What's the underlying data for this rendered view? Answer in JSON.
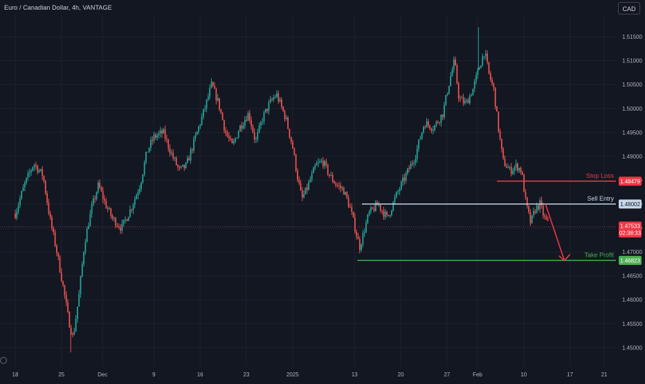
{
  "header": {
    "title": "Euro / Canadian Dollar, 4h, VANTAGE",
    "currency": "CAD"
  },
  "chart_data": {
    "type": "candlestick",
    "title": "Euro / Canadian Dollar, 4h, VANTAGE",
    "ylim": [
      1.446,
      1.5195
    ],
    "y_ticks": [
      "1.45000",
      "1.45500",
      "1.46000",
      "1.46500",
      "1.47000",
      "1.47500",
      "1.48000",
      "1.48500",
      "1.49000",
      "1.49500",
      "1.50000",
      "1.50500",
      "1.51000",
      "1.51500"
    ],
    "x_ticks": [
      "18",
      "25",
      "Dec",
      "9",
      "16",
      "23",
      "2025",
      "13",
      "20",
      "27",
      "Feb",
      "10",
      "17",
      "21"
    ],
    "x_tick_positions": [
      0.0,
      1.0,
      1.89,
      3.0,
      4.0,
      5.0,
      6.0,
      7.34,
      8.34,
      9.34,
      10.0,
      11.0,
      12.0,
      12.74
    ],
    "price_path": [
      [
        0.0,
        1.478
      ],
      [
        0.2,
        1.484
      ],
      [
        0.4,
        1.4885
      ],
      [
        0.6,
        1.486
      ],
      [
        0.75,
        1.477
      ],
      [
        0.9,
        1.47
      ],
      [
        1.05,
        1.462
      ],
      [
        1.15,
        1.456
      ],
      [
        1.25,
        1.452
      ],
      [
        1.38,
        1.461
      ],
      [
        1.5,
        1.472
      ],
      [
        1.65,
        1.479
      ],
      [
        1.8,
        1.484
      ],
      [
        1.95,
        1.48
      ],
      [
        2.1,
        1.477
      ],
      [
        2.3,
        1.475
      ],
      [
        2.5,
        1.479
      ],
      [
        2.7,
        1.484
      ],
      [
        2.85,
        1.491
      ],
      [
        3.0,
        1.494
      ],
      [
        3.2,
        1.495
      ],
      [
        3.4,
        1.49
      ],
      [
        3.55,
        1.487
      ],
      [
        3.7,
        1.488
      ],
      [
        3.9,
        1.494
      ],
      [
        4.1,
        1.5
      ],
      [
        4.25,
        1.505
      ],
      [
        4.4,
        1.501
      ],
      [
        4.55,
        1.495
      ],
      [
        4.7,
        1.492
      ],
      [
        4.85,
        1.496
      ],
      [
        5.05,
        1.499
      ],
      [
        5.2,
        1.493
      ],
      [
        5.35,
        1.498
      ],
      [
        5.5,
        1.501
      ],
      [
        5.65,
        1.503
      ],
      [
        5.85,
        1.498
      ],
      [
        6.0,
        1.492
      ],
      [
        6.1,
        1.486
      ],
      [
        6.2,
        1.481
      ],
      [
        6.3,
        1.483
      ],
      [
        6.5,
        1.488
      ],
      [
        6.65,
        1.489
      ],
      [
        6.8,
        1.486
      ],
      [
        6.95,
        1.484
      ],
      [
        7.1,
        1.483
      ],
      [
        7.25,
        1.479
      ],
      [
        7.45,
        1.471
      ],
      [
        7.65,
        1.478
      ],
      [
        7.85,
        1.48
      ],
      [
        8.05,
        1.477
      ],
      [
        8.25,
        1.482
      ],
      [
        8.45,
        1.486
      ],
      [
        8.65,
        1.49
      ],
      [
        8.85,
        1.497
      ],
      [
        9.05,
        1.496
      ],
      [
        9.25,
        1.499
      ],
      [
        9.4,
        1.506
      ],
      [
        9.5,
        1.51
      ],
      [
        9.6,
        1.502
      ],
      [
        9.75,
        1.501
      ],
      [
        9.9,
        1.504
      ],
      [
        10.05,
        1.509
      ],
      [
        10.15,
        1.512
      ],
      [
        10.25,
        1.507
      ],
      [
        10.35,
        1.504
      ],
      [
        10.45,
        1.496
      ],
      [
        10.55,
        1.489
      ],
      [
        10.7,
        1.487
      ],
      [
        10.85,
        1.488
      ],
      [
        10.95,
        1.487
      ],
      [
        11.05,
        1.48
      ],
      [
        11.15,
        1.476
      ],
      [
        11.25,
        1.479
      ],
      [
        11.35,
        1.48
      ],
      [
        11.45,
        1.477
      ],
      [
        11.55,
        1.4755
      ]
    ],
    "spikes": [
      {
        "x": 1.2,
        "low": 1.449
      },
      {
        "x": 10.02,
        "high": 1.517
      }
    ],
    "levels": [
      {
        "name": "stop-loss",
        "label": "Stop Loss",
        "price": 1.48479,
        "price_text": "1.48479",
        "color": "#f23645",
        "x_start": 10.42
      },
      {
        "name": "sell-entry",
        "label": "Sell Entry",
        "price": 1.48002,
        "price_text": "1.48002",
        "color": "#c6d7ea",
        "x_start": 7.5
      },
      {
        "name": "take-profit",
        "label": "Take Profit",
        "price": 1.46823,
        "price_text": "1.46823",
        "color": "#4caf50",
        "x_start": 7.4
      }
    ],
    "current_price": {
      "price": 1.47533,
      "price_text": "1.47533",
      "countdown": "02:38:33",
      "color": "#f23645"
    },
    "projection": {
      "color": "#f23645",
      "from": [
        11.47,
        1.48
      ],
      "to": [
        11.88,
        1.4682
      ]
    },
    "colors": {
      "up": "#26a69a",
      "down": "#ef5350",
      "background": "#131722",
      "grid": "#1e222d",
      "axis_text": "#b2b5be"
    }
  }
}
